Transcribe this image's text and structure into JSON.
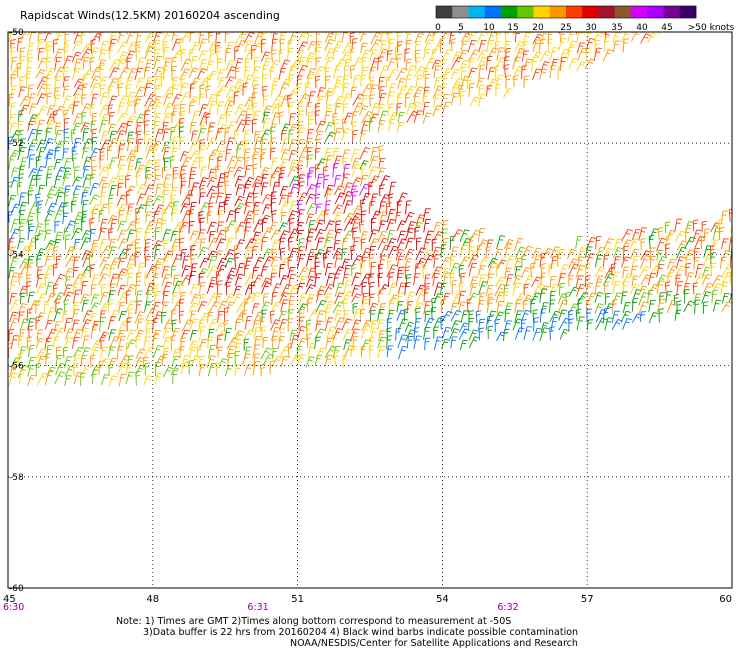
{
  "title": "Rapidscat Winds(12.5KM) 20160204 ascending",
  "colorbar": {
    "labels": [
      "0",
      "5",
      "10",
      "15",
      "20",
      "25",
      "30",
      "35",
      "40",
      "45",
      ">50 knots"
    ],
    "colors": [
      "#3f3f3f",
      "#8f8f8f",
      "#00b4f0",
      "#0070ff",
      "#00a000",
      "#64c800",
      "#ffd200",
      "#ff9600",
      "#ff3c00",
      "#e10000",
      "#a0142d",
      "#8c5a28",
      "#d200ff",
      "#aa00ff",
      "#780096",
      "#3c0064"
    ]
  },
  "axes": {
    "lat_labels": [
      "-50",
      "-52",
      "-54",
      "-56",
      "-58",
      "-60"
    ],
    "lon_labels": [
      "45",
      "48",
      "51",
      "54",
      "57",
      "60"
    ],
    "time_labels": [
      "6:30",
      "6:31",
      "6:32"
    ],
    "time_label_color": "#960096"
  },
  "notes": {
    "line1": "Note: 1) Times are GMT 2)Times along bottom correspond to measurement at -50S",
    "line2": "3)Data buffer is 22 hrs from 20160204 4) Black wind barbs indicate possible contamination",
    "line3": "NOAA/NESDIS/Center for Satellite Applications and Research"
  }
}
